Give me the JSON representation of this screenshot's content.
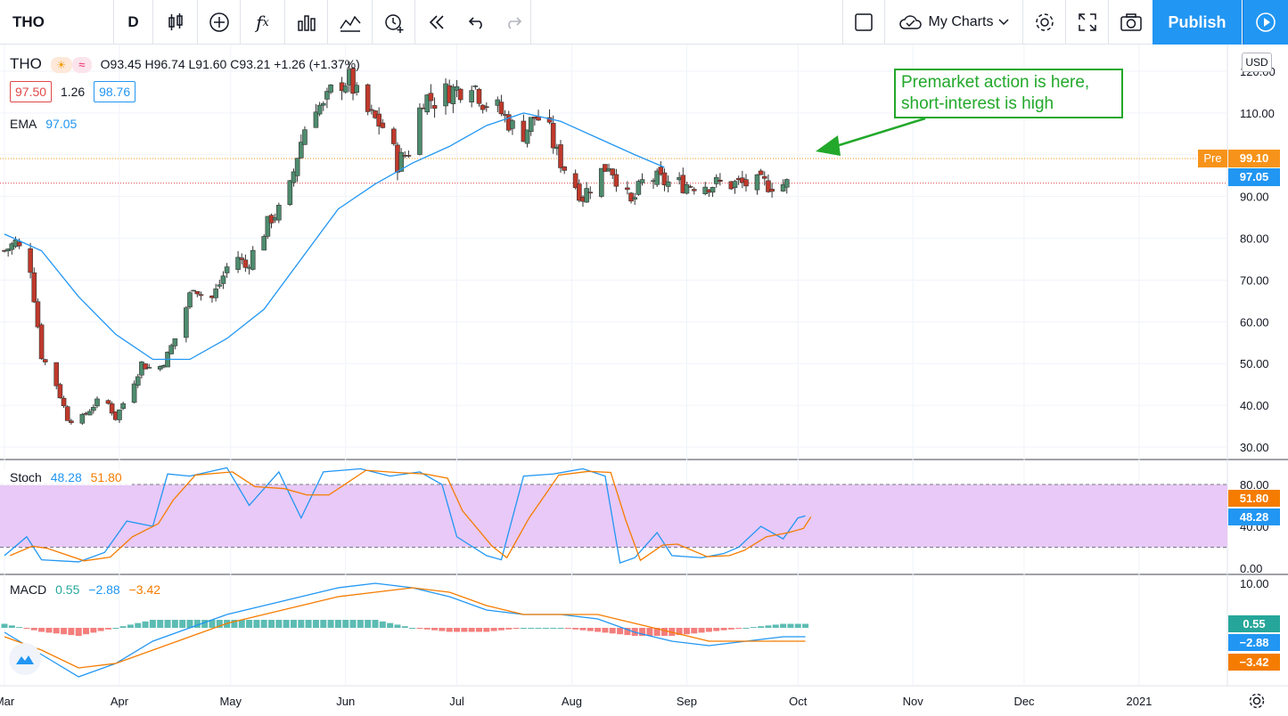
{
  "toolbar": {
    "symbol": "THO",
    "interval": "D",
    "my_charts": "My Charts",
    "publish": "Publish",
    "icons": [
      "candles-icon",
      "add-indicator-icon",
      "fx-icon",
      "bars-icon",
      "compare-icon",
      "alert-icon",
      "replay-icon",
      "undo-icon",
      "redo-icon",
      "layout-icon",
      "cloud-icon",
      "gear-icon",
      "fullscreen-icon",
      "camera-icon",
      "play-icon"
    ]
  },
  "legend": {
    "symbol": "THO",
    "ohlc": "O93.45 H96.74 L91.60 C93.21 +1.26 (+1.37%)",
    "bid": "97.50",
    "spread": "1.26",
    "ask": "98.76",
    "ema_label": "EMA",
    "ema_value": "97.05"
  },
  "annotation": {
    "line1": "Premarket action is here,",
    "line2": "short-interest is high"
  },
  "stoch_legend": {
    "label": "Stoch",
    "k": "48.28",
    "d": "51.80"
  },
  "macd_legend": {
    "label": "MACD",
    "hist": "0.55",
    "macd": "−2.88",
    "signal": "−3.42"
  },
  "price_tags": {
    "pre_label": "Pre",
    "pre_value": "99.10",
    "ema_value": "97.05",
    "currency": "USD"
  },
  "stoch_tags": {
    "d": "51.80",
    "k": "48.28"
  },
  "macd_tags": {
    "hist": "0.55",
    "macd": "−2.88",
    "signal": "−3.42"
  },
  "colors": {
    "up": "#4e8c6e",
    "down": "#c0392b",
    "ema": "#2196f3",
    "stoch_k": "#2196f3",
    "stoch_d": "#f57c00",
    "stoch_band": "#e8c9f7",
    "macd": "#2196f3",
    "signal": "#f57c00",
    "pre": "#f7931a"
  },
  "chart_data": {
    "type": "candlestick",
    "price_axis": {
      "ticks": [
        30,
        40,
        50,
        60,
        70,
        80,
        90,
        100,
        110,
        120
      ],
      "tick_labels": [
        "30.00",
        "40.00",
        "50.00",
        "60.00",
        "70.00",
        "80.00",
        "90.00",
        "",
        "110.00",
        "120.00"
      ],
      "ylim": [
        27,
        123
      ]
    },
    "x_labels": [
      "Mar",
      "Apr",
      "May",
      "Jun",
      "Jul",
      "Aug",
      "Sep",
      "Oct",
      "Nov",
      "Dec",
      "2021"
    ],
    "x_label_days": [
      0,
      31,
      61,
      92,
      122,
      153,
      184,
      214,
      245,
      275,
      306
    ],
    "closes_weekly": [
      [
        0,
        77
      ],
      [
        3,
        79
      ],
      [
        7,
        73
      ],
      [
        10,
        52
      ],
      [
        14,
        45
      ],
      [
        17,
        37
      ],
      [
        20,
        36
      ],
      [
        24,
        40
      ],
      [
        27,
        42
      ],
      [
        30,
        37
      ],
      [
        34,
        44
      ],
      [
        37,
        50
      ],
      [
        41,
        48
      ],
      [
        44,
        52
      ],
      [
        47,
        58
      ],
      [
        51,
        69
      ],
      [
        55,
        64
      ],
      [
        58,
        69
      ],
      [
        62,
        77
      ],
      [
        65,
        73
      ],
      [
        69,
        80
      ],
      [
        72,
        85
      ],
      [
        76,
        88
      ],
      [
        79,
        100
      ],
      [
        83,
        113
      ],
      [
        86,
        111
      ],
      [
        89,
        117
      ],
      [
        93,
        118
      ],
      [
        96,
        112
      ],
      [
        99,
        109
      ],
      [
        103,
        106
      ],
      [
        106,
        98
      ],
      [
        109,
        101
      ],
      [
        113,
        114
      ],
      [
        116,
        113
      ],
      [
        119,
        115
      ],
      [
        123,
        116
      ],
      [
        126,
        118
      ],
      [
        129,
        113
      ],
      [
        133,
        111
      ],
      [
        136,
        108
      ],
      [
        139,
        104
      ],
      [
        143,
        109
      ],
      [
        146,
        108
      ],
      [
        149,
        100
      ],
      [
        153,
        94
      ],
      [
        156,
        90
      ],
      [
        159,
        94
      ],
      [
        163,
        98
      ],
      [
        166,
        93
      ],
      [
        169,
        88
      ],
      [
        173,
        95
      ],
      [
        176,
        94
      ],
      [
        180,
        93
      ]
    ],
    "ema_path": [
      [
        0,
        81
      ],
      [
        10,
        77
      ],
      [
        20,
        66
      ],
      [
        30,
        57
      ],
      [
        40,
        51
      ],
      [
        50,
        51
      ],
      [
        60,
        56
      ],
      [
        70,
        63
      ],
      [
        80,
        75
      ],
      [
        90,
        87
      ],
      [
        100,
        93
      ],
      [
        110,
        98
      ],
      [
        120,
        102
      ],
      [
        130,
        107
      ],
      [
        140,
        110
      ],
      [
        150,
        108
      ],
      [
        160,
        104
      ],
      [
        170,
        100
      ],
      [
        178,
        97
      ]
    ],
    "stoch": {
      "yticks": [
        0,
        20,
        40,
        80
      ],
      "tick_labels": [
        "0.00",
        "",
        "40.00",
        "80.00"
      ],
      "band": [
        20,
        80
      ]
    },
    "macd": {
      "yticks": [
        -10,
        0,
        10
      ],
      "tick_labels": [
        "",
        "",
        "10.00"
      ]
    }
  }
}
